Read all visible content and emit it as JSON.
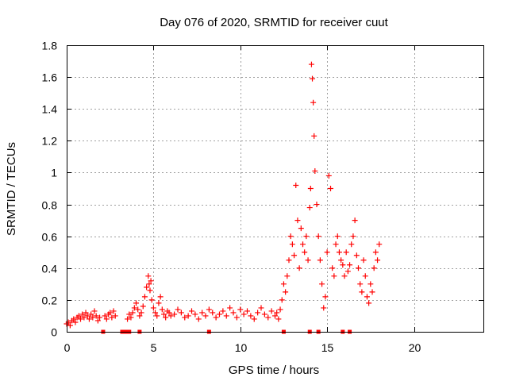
{
  "chart_data": {
    "type": "scatter",
    "title": "Day 076 of 2020, SRMTID for receiver cuut",
    "xlabel": "GPS time / hours",
    "ylabel": "SRMTID / TECUs",
    "xlim": [
      0,
      24
    ],
    "ylim": [
      0,
      1.8
    ],
    "x_ticks": [
      0,
      5,
      10,
      15,
      20
    ],
    "x_tick_labels": [
      "0",
      "5",
      "10",
      "15",
      "20"
    ],
    "y_ticks": [
      0,
      0.2,
      0.4,
      0.6,
      0.8,
      1.0,
      1.2,
      1.4,
      1.6,
      1.8
    ],
    "y_tick_labels": [
      "0",
      "0.2",
      "0.4",
      "0.6",
      "0.8",
      "1",
      "1.2",
      "1.4",
      "1.6",
      "1.8"
    ],
    "grid": true,
    "marker_color": "#ff0000",
    "series": [
      {
        "name": "SRMTID",
        "marker": "plus",
        "x": [
          0.0,
          0.1,
          0.2,
          0.3,
          0.4,
          0.5,
          0.6,
          0.7,
          0.8,
          0.9,
          1.0,
          1.1,
          1.2,
          1.3,
          1.4,
          1.5,
          1.6,
          1.7,
          1.8,
          1.9,
          2.2,
          2.3,
          2.4,
          2.5,
          2.6,
          2.7,
          2.8,
          3.5,
          3.6,
          3.7,
          3.8,
          3.9,
          4.0,
          4.1,
          4.2,
          4.3,
          4.4,
          4.5,
          4.6,
          4.7,
          4.75,
          4.8,
          4.85,
          4.9,
          5.0,
          5.1,
          5.2,
          5.3,
          5.4,
          5.5,
          5.6,
          5.7,
          5.8,
          5.9,
          6.0,
          6.2,
          6.4,
          6.6,
          6.8,
          7.0,
          7.2,
          7.4,
          7.6,
          7.8,
          8.0,
          8.2,
          8.4,
          8.6,
          8.8,
          9.0,
          9.2,
          9.4,
          9.6,
          9.8,
          10.0,
          10.2,
          10.4,
          10.6,
          10.8,
          11.0,
          11.2,
          11.4,
          11.6,
          11.8,
          12.0,
          12.1,
          12.2,
          12.3,
          12.4,
          12.5,
          12.6,
          12.7,
          12.8,
          12.9,
          13.0,
          13.1,
          13.2,
          13.3,
          13.4,
          13.5,
          13.6,
          13.7,
          13.8,
          13.9,
          14.0,
          14.05,
          14.1,
          14.15,
          14.2,
          14.25,
          14.3,
          14.4,
          14.5,
          14.6,
          14.7,
          14.8,
          14.9,
          15.0,
          15.1,
          15.2,
          15.3,
          15.4,
          15.5,
          15.6,
          15.7,
          15.8,
          15.9,
          16.0,
          16.1,
          16.2,
          16.3,
          16.4,
          16.5,
          16.6,
          16.7,
          16.8,
          16.9,
          17.0,
          17.1,
          17.2,
          17.3,
          17.4,
          17.5,
          17.6,
          17.7,
          17.8,
          17.9,
          18.0
        ],
        "y": [
          0.05,
          0.06,
          0.04,
          0.07,
          0.08,
          0.06,
          0.09,
          0.1,
          0.08,
          0.11,
          0.09,
          0.12,
          0.1,
          0.08,
          0.11,
          0.09,
          0.13,
          0.1,
          0.07,
          0.09,
          0.1,
          0.08,
          0.11,
          0.12,
          0.09,
          0.13,
          0.1,
          0.08,
          0.11,
          0.09,
          0.12,
          0.15,
          0.18,
          0.14,
          0.1,
          0.12,
          0.16,
          0.22,
          0.28,
          0.35,
          0.3,
          0.26,
          0.32,
          0.2,
          0.15,
          0.12,
          0.1,
          0.18,
          0.22,
          0.14,
          0.11,
          0.09,
          0.13,
          0.12,
          0.1,
          0.11,
          0.14,
          0.12,
          0.09,
          0.1,
          0.13,
          0.11,
          0.08,
          0.12,
          0.1,
          0.14,
          0.12,
          0.09,
          0.11,
          0.13,
          0.1,
          0.15,
          0.12,
          0.09,
          0.14,
          0.11,
          0.13,
          0.1,
          0.08,
          0.12,
          0.15,
          0.11,
          0.09,
          0.13,
          0.1,
          0.12,
          0.08,
          0.14,
          0.2,
          0.3,
          0.25,
          0.35,
          0.45,
          0.6,
          0.55,
          0.48,
          0.92,
          0.7,
          0.4,
          0.65,
          0.55,
          0.5,
          0.6,
          0.45,
          0.78,
          0.9,
          1.68,
          1.59,
          1.44,
          1.23,
          1.01,
          0.8,
          0.6,
          0.45,
          0.3,
          0.15,
          0.22,
          0.5,
          0.98,
          0.9,
          0.4,
          0.35,
          0.55,
          0.6,
          0.5,
          0.45,
          0.42,
          0.35,
          0.5,
          0.38,
          0.42,
          0.55,
          0.6,
          0.7,
          0.48,
          0.4,
          0.3,
          0.25,
          0.45,
          0.35,
          0.22,
          0.18,
          0.3,
          0.25,
          0.4,
          0.5,
          0.45,
          0.55
        ],
        "gap_markers_x": [
          2.1,
          3.2,
          3.3,
          3.4,
          3.5,
          3.6,
          4.2,
          8.2,
          12.5,
          14.0,
          14.5,
          15.9,
          16.3
        ]
      }
    ]
  }
}
